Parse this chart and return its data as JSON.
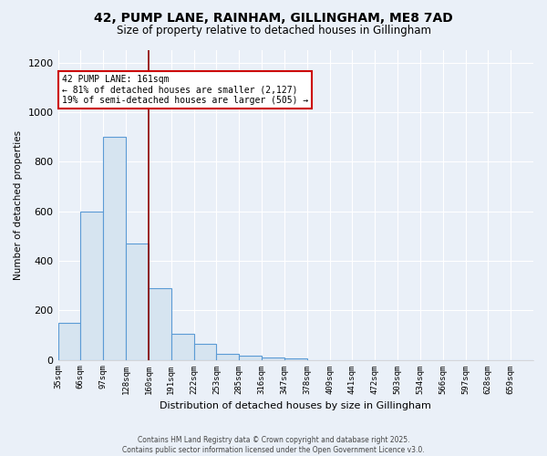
{
  "title_line1": "42, PUMP LANE, RAINHAM, GILLINGHAM, ME8 7AD",
  "title_line2": "Size of property relative to detached houses in Gillingham",
  "xlabel": "Distribution of detached houses by size in Gillingham",
  "ylabel": "Number of detached properties",
  "bin_labels": [
    "35sqm",
    "66sqm",
    "97sqm",
    "128sqm",
    "160sqm",
    "191sqm",
    "222sqm",
    "253sqm",
    "285sqm",
    "316sqm",
    "347sqm",
    "378sqm",
    "409sqm",
    "441sqm",
    "472sqm",
    "503sqm",
    "534sqm",
    "566sqm",
    "597sqm",
    "628sqm",
    "659sqm"
  ],
  "bar_values": [
    150,
    600,
    900,
    470,
    290,
    105,
    65,
    25,
    15,
    10,
    5,
    0,
    0,
    0,
    0,
    0,
    0,
    0,
    0,
    0,
    0
  ],
  "bar_color": "#d6e4f0",
  "bar_edge_color": "#5b9bd5",
  "vline_x": 4.0,
  "vline_color": "#8b0000",
  "annotation_text": "42 PUMP LANE: 161sqm\n← 81% of detached houses are smaller (2,127)\n19% of semi-detached houses are larger (505) →",
  "annotation_box_color": "#ffffff",
  "annotation_box_edge": "#cc0000",
  "ylim": [
    0,
    1250
  ],
  "yticks": [
    0,
    200,
    400,
    600,
    800,
    1000,
    1200
  ],
  "background_color": "#eaf0f8",
  "grid_color": "#ffffff",
  "footer_line1": "Contains HM Land Registry data © Crown copyright and database right 2025.",
  "footer_line2": "Contains public sector information licensed under the Open Government Licence v3.0."
}
